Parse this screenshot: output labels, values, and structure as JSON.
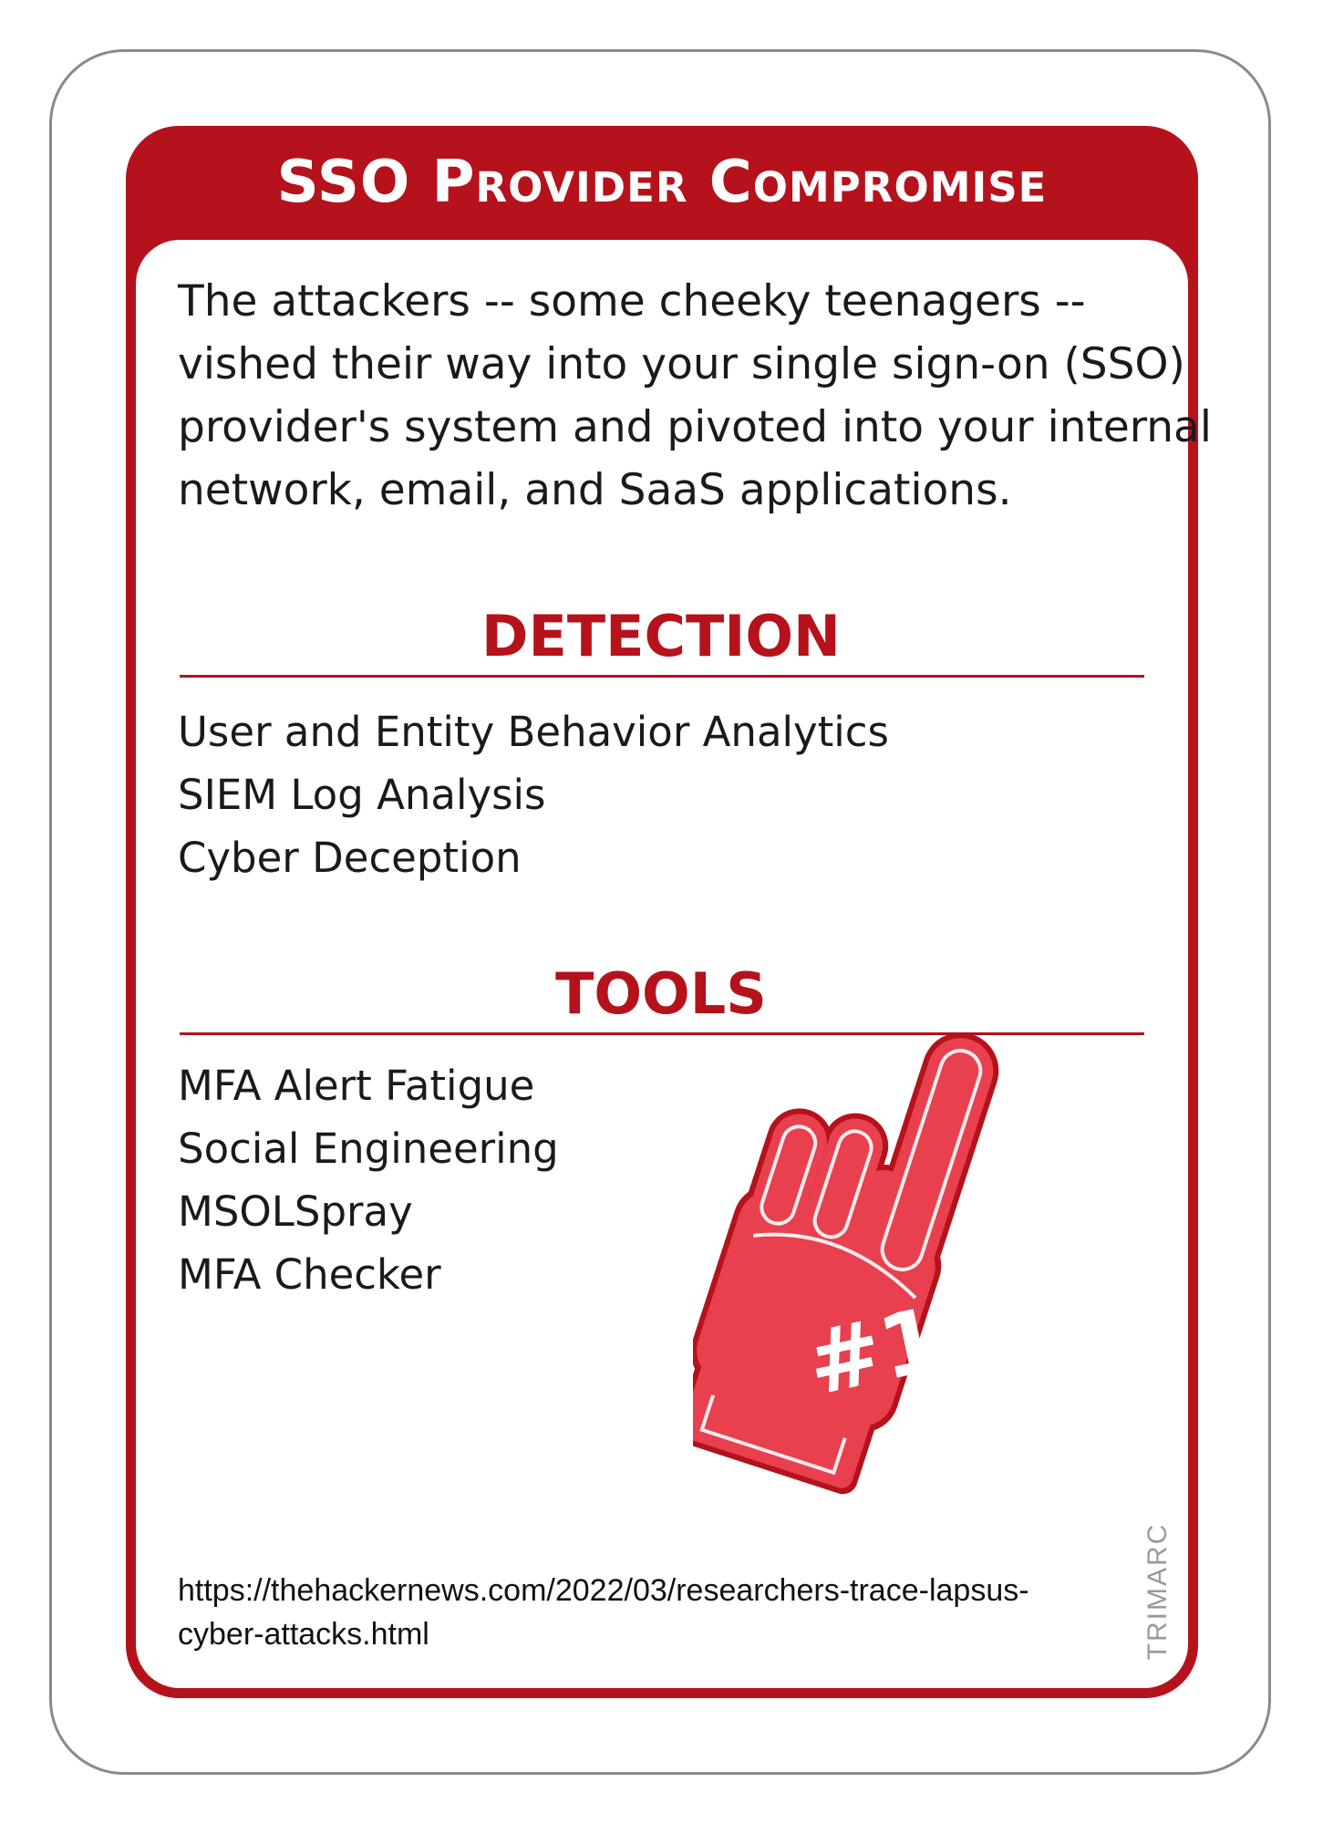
{
  "card": {
    "title": "SSO Provider Compromise",
    "description_lines": [
      "The attackers -- some cheeky teenagers --",
      "vished their way into your single sign-on (SSO)",
      "provider's system and pivoted into your internal",
      "network, email, and SaaS applications."
    ],
    "detection": {
      "heading": "DETECTION",
      "items": [
        "User and Entity Behavior Analytics",
        "SIEM Log Analysis",
        "Cyber Deception"
      ]
    },
    "tools": {
      "heading": "TOOLS",
      "items": [
        "MFA Alert Fatigue",
        "Social Engineering",
        "MSOLSpray",
        "MFA Checker"
      ]
    },
    "illustration": {
      "icon": "foam-finger-icon",
      "label": "#1"
    },
    "source_lines": [
      "https://thehackernews.com/2022/03/researchers-trace-lapsus-",
      "cyber-attacks.html"
    ],
    "brand": "TRIMARC"
  },
  "colors": {
    "accent": "#b5121b",
    "hand_fill": "#e8404e",
    "hand_outline": "#b5121b",
    "text": "#1a1a1a"
  }
}
